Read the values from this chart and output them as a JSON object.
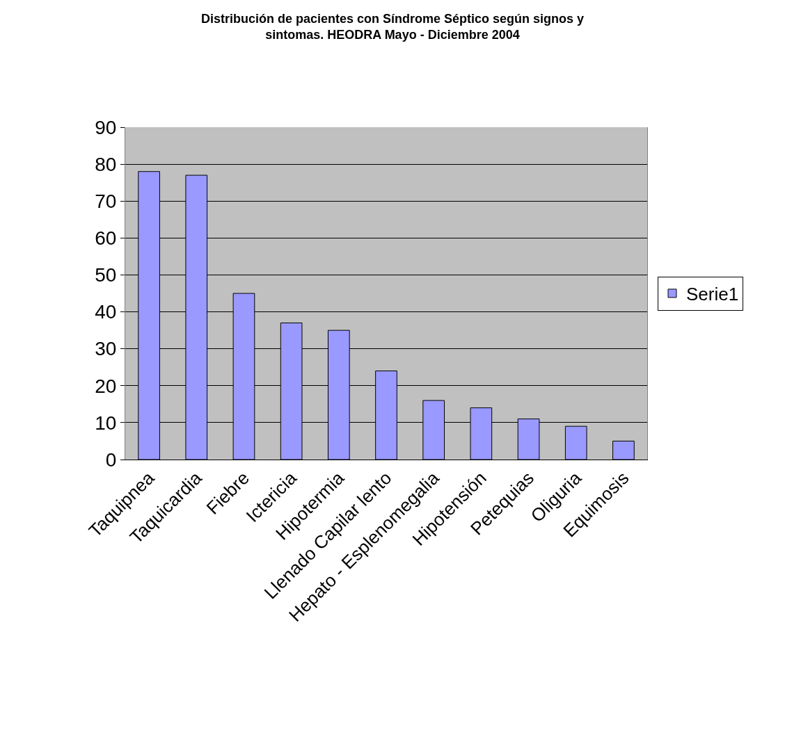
{
  "chart_data": {
    "type": "bar",
    "title": "Distribución de pacientes con Síndrome Séptico según signos y sintomas. HEODRA Mayo - Diciembre 2004",
    "categories": [
      "Taquipnea",
      "Taquicardia",
      "Fiebre",
      "Ictericia",
      "Hipotermia",
      "Llenado Capilar lento",
      "Hepato - Esplenomegalia",
      "Hipotensión",
      "Petequias",
      "Oliguria",
      "Equimosis"
    ],
    "series": [
      {
        "name": "Serie1",
        "color": "#9999ff",
        "values": [
          78,
          77,
          45,
          37,
          35,
          24,
          16,
          14,
          11,
          9,
          5
        ]
      }
    ],
    "ylim": [
      0,
      90
    ],
    "yticks": [
      0,
      10,
      20,
      30,
      40,
      50,
      60,
      70,
      80,
      90
    ],
    "grid": "y",
    "legend": "right"
  }
}
